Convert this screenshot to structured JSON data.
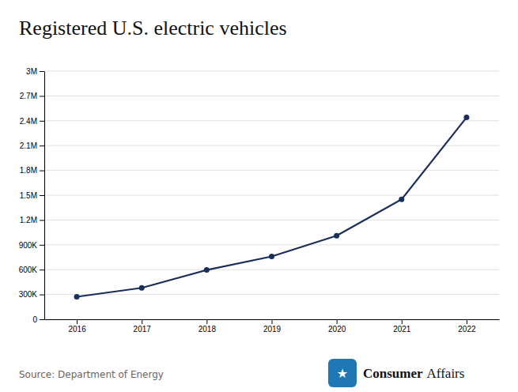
{
  "chart_data": {
    "type": "line",
    "title": "Registered U.S. electric vehicles",
    "x": [
      2016,
      2017,
      2018,
      2019,
      2020,
      2021,
      2022
    ],
    "values": [
      272000,
      380000,
      596000,
      760000,
      1010000,
      1450000,
      2440000
    ],
    "color": "#1a2e5a",
    "marker": "circle",
    "xlim": [
      2015.5,
      2022.5
    ],
    "xticks": [
      2016,
      2017,
      2018,
      2019,
      2020,
      2021,
      2022
    ],
    "ylim": [
      0,
      3000000
    ],
    "yticks": [
      0,
      {
        "value": 300000,
        "label": "300K"
      },
      {
        "value": 600000,
        "label": "600K"
      },
      {
        "value": 900000,
        "label": "900K"
      },
      {
        "value": 1200000,
        "label": "1.2M"
      },
      {
        "value": 1500000,
        "label": "1.5M"
      },
      {
        "value": 1800000,
        "label": "1.8M"
      },
      {
        "value": 2100000,
        "label": "2.1M"
      },
      {
        "value": 2400000,
        "label": "2.4M"
      },
      {
        "value": 2700000,
        "label": "2.7M"
      },
      {
        "value": 3000000,
        "label": "3M"
      }
    ],
    "grid": true,
    "annotations": [
      "Source: Department of Energy",
      "★",
      "Consumer",
      "Affairs"
    ]
  }
}
